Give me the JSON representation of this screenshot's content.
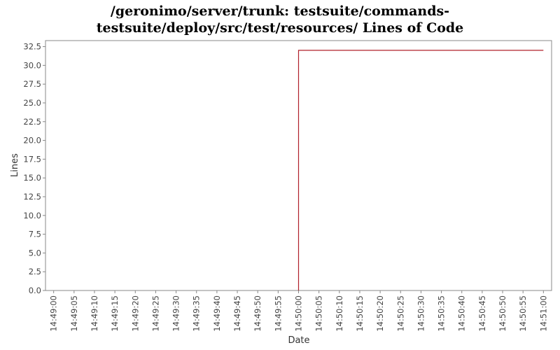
{
  "chart_data": {
    "type": "line",
    "step": true,
    "title_lines": [
      "/geronimo/server/trunk: testsuite/commands-",
      "testsuite/deploy/src/test/resources/ Lines of Code"
    ],
    "xlabel": "Date",
    "ylabel": "Lines",
    "x_tick_labels": [
      "14:49:00",
      "14:49:05",
      "14:49:10",
      "14:49:15",
      "14:49:20",
      "14:49:25",
      "14:49:30",
      "14:49:35",
      "14:49:40",
      "14:49:45",
      "14:49:50",
      "14:49:55",
      "14:50:00",
      "14:50:05",
      "14:50:10",
      "14:50:15",
      "14:50:20",
      "14:50:25",
      "14:50:30",
      "14:50:35",
      "14:50:40",
      "14:50:45",
      "14:50:50",
      "14:50:55",
      "14:51:00"
    ],
    "y_tick_labels": [
      "0.0",
      "2.5",
      "5.0",
      "7.5",
      "10.0",
      "12.5",
      "15.0",
      "17.5",
      "20.0",
      "22.5",
      "25.0",
      "27.5",
      "30.0",
      "32.5"
    ],
    "ylim": [
      0,
      33.3
    ],
    "xlim": [
      "14:48:58",
      "14:51:02"
    ],
    "grid": false,
    "series": [
      {
        "color": "#b0202a",
        "points": [
          {
            "x": "14:50:00",
            "y": 0
          },
          {
            "x": "14:50:00",
            "y": 32
          },
          {
            "x": "14:51:00",
            "y": 32
          }
        ]
      }
    ]
  }
}
